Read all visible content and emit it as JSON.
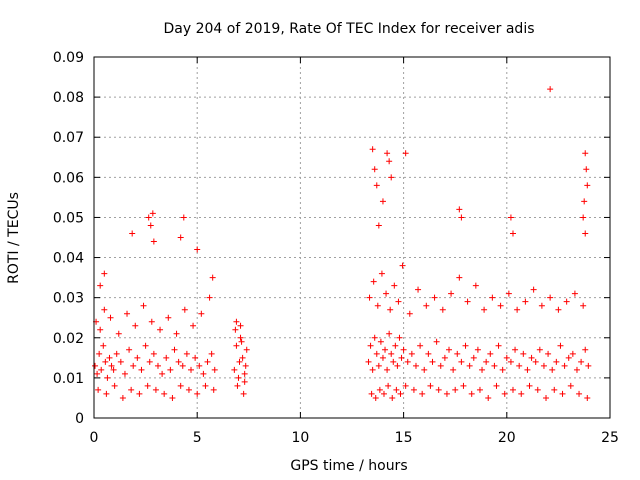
{
  "chart_data": {
    "type": "scatter",
    "title": "Day 204 of 2019, Rate Of TEC Index for receiver adis",
    "xlabel": "GPS time / hours",
    "ylabel": "ROTI / TECUs",
    "xlim": [
      0,
      25
    ],
    "ylim": [
      0,
      0.09
    ],
    "xticks": [
      0,
      5,
      10,
      15,
      20,
      25
    ],
    "xtick_labels": [
      "0",
      "5",
      "10",
      "15",
      "20",
      "25"
    ],
    "yticks": [
      0,
      0.01,
      0.02,
      0.03,
      0.04,
      0.05,
      0.06,
      0.07,
      0.08,
      0.09
    ],
    "ytick_labels": [
      "0",
      "0.01",
      "0.02",
      "0.03",
      "0.04",
      "0.05",
      "0.06",
      "0.07",
      "0.08",
      "0.09"
    ],
    "grid": true,
    "marker": "+",
    "color": "#ff0000",
    "series": [
      {
        "name": "ROTI",
        "x": [
          0.05,
          0.15,
          0.25,
          0.35,
          0.45,
          0.55,
          0.65,
          0.75,
          0.85,
          0.95,
          1.1,
          1.3,
          1.5,
          1.7,
          1.9,
          2.1,
          2.3,
          2.5,
          2.7,
          2.9,
          3.1,
          3.3,
          3.5,
          3.7,
          3.9,
          4.1,
          4.3,
          4.5,
          4.7,
          4.9,
          5.1,
          5.3,
          5.5,
          5.7,
          5.85,
          0.1,
          0.3,
          0.5,
          0.8,
          1.2,
          1.6,
          2.0,
          2.4,
          2.8,
          3.2,
          3.6,
          4.0,
          4.4,
          4.8,
          5.2,
          5.6,
          0.2,
          0.6,
          1.0,
          1.4,
          1.8,
          2.2,
          2.6,
          3.0,
          3.4,
          3.8,
          4.2,
          4.6,
          5.0,
          5.4,
          5.8,
          2.65,
          2.75,
          2.85,
          2.9,
          1.85,
          4.2,
          4.35,
          5.0,
          5.75,
          0.3,
          0.5,
          6.8,
          6.9,
          7.0,
          7.1,
          7.2,
          7.3,
          7.4,
          6.85,
          6.95,
          7.05,
          7.15,
          7.25,
          7.35,
          6.9,
          7.1,
          7.3,
          13.3,
          13.4,
          13.5,
          13.6,
          13.7,
          13.8,
          13.9,
          14.0,
          14.1,
          14.2,
          14.3,
          14.4,
          14.5,
          14.6,
          14.7,
          14.8,
          14.9,
          15.0,
          15.2,
          15.4,
          15.6,
          15.8,
          16.0,
          16.2,
          16.4,
          16.6,
          16.8,
          17.0,
          17.2,
          17.4,
          17.6,
          17.8,
          18.0,
          18.2,
          18.4,
          18.6,
          18.8,
          19.0,
          19.2,
          19.4,
          19.6,
          19.8,
          20.0,
          20.2,
          20.4,
          20.6,
          20.8,
          21.0,
          21.2,
          21.4,
          21.6,
          21.8,
          22.0,
          22.2,
          22.4,
          22.6,
          22.8,
          23.0,
          23.2,
          23.4,
          23.6,
          23.8,
          23.95,
          13.35,
          13.55,
          13.75,
          13.95,
          14.15,
          14.35,
          14.55,
          14.75,
          14.95,
          15.3,
          15.7,
          16.1,
          16.5,
          16.9,
          17.3,
          17.7,
          18.1,
          18.5,
          18.9,
          19.3,
          19.7,
          20.1,
          20.5,
          20.9,
          21.3,
          21.7,
          22.1,
          22.5,
          22.9,
          23.3,
          23.7,
          13.45,
          13.65,
          13.85,
          14.05,
          14.25,
          14.45,
          14.65,
          14.85,
          15.1,
          15.5,
          15.9,
          16.3,
          16.7,
          17.1,
          17.5,
          17.9,
          18.3,
          18.7,
          19.1,
          19.5,
          19.9,
          20.3,
          20.7,
          21.1,
          21.5,
          21.9,
          22.3,
          22.7,
          23.1,
          23.5,
          23.9,
          13.5,
          13.6,
          13.7,
          14.2,
          14.3,
          14.4,
          15.1,
          14.0,
          13.8,
          17.7,
          17.8,
          20.2,
          20.3,
          22.1,
          23.8,
          23.85,
          23.9,
          23.75,
          23.7,
          23.8
        ],
        "y": [
          0.013,
          0.011,
          0.016,
          0.012,
          0.018,
          0.014,
          0.01,
          0.015,
          0.013,
          0.012,
          0.016,
          0.014,
          0.011,
          0.017,
          0.013,
          0.015,
          0.012,
          0.018,
          0.014,
          0.016,
          0.013,
          0.011,
          0.015,
          0.012,
          0.017,
          0.014,
          0.013,
          0.016,
          0.012,
          0.015,
          0.013,
          0.011,
          0.014,
          0.016,
          0.012,
          0.024,
          0.022,
          0.027,
          0.025,
          0.021,
          0.026,
          0.023,
          0.028,
          0.024,
          0.022,
          0.025,
          0.021,
          0.027,
          0.023,
          0.026,
          0.03,
          0.007,
          0.006,
          0.008,
          0.005,
          0.007,
          0.006,
          0.008,
          0.007,
          0.006,
          0.005,
          0.008,
          0.007,
          0.006,
          0.008,
          0.007,
          0.05,
          0.048,
          0.051,
          0.044,
          0.046,
          0.045,
          0.05,
          0.042,
          0.035,
          0.033,
          0.036,
          0.012,
          0.018,
          0.01,
          0.02,
          0.015,
          0.011,
          0.017,
          0.022,
          0.008,
          0.014,
          0.019,
          0.006,
          0.013,
          0.024,
          0.023,
          0.009,
          0.014,
          0.018,
          0.012,
          0.02,
          0.016,
          0.013,
          0.019,
          0.015,
          0.017,
          0.012,
          0.021,
          0.016,
          0.014,
          0.018,
          0.013,
          0.02,
          0.015,
          0.017,
          0.014,
          0.016,
          0.013,
          0.018,
          0.012,
          0.016,
          0.014,
          0.019,
          0.013,
          0.015,
          0.017,
          0.012,
          0.016,
          0.014,
          0.018,
          0.013,
          0.015,
          0.017,
          0.012,
          0.014,
          0.016,
          0.013,
          0.018,
          0.012,
          0.015,
          0.014,
          0.017,
          0.013,
          0.016,
          0.012,
          0.015,
          0.014,
          0.017,
          0.013,
          0.016,
          0.012,
          0.014,
          0.018,
          0.013,
          0.015,
          0.016,
          0.012,
          0.014,
          0.017,
          0.013,
          0.03,
          0.034,
          0.028,
          0.036,
          0.031,
          0.027,
          0.033,
          0.029,
          0.038,
          0.026,
          0.032,
          0.028,
          0.03,
          0.027,
          0.031,
          0.035,
          0.029,
          0.033,
          0.027,
          0.03,
          0.028,
          0.031,
          0.027,
          0.029,
          0.032,
          0.028,
          0.03,
          0.027,
          0.029,
          0.031,
          0.028,
          0.006,
          0.005,
          0.007,
          0.006,
          0.008,
          0.005,
          0.007,
          0.006,
          0.008,
          0.007,
          0.006,
          0.008,
          0.007,
          0.006,
          0.007,
          0.008,
          0.006,
          0.007,
          0.005,
          0.008,
          0.006,
          0.007,
          0.006,
          0.008,
          0.007,
          0.005,
          0.007,
          0.006,
          0.008,
          0.006,
          0.005,
          0.067,
          0.062,
          0.058,
          0.066,
          0.064,
          0.06,
          0.066,
          0.054,
          0.048,
          0.052,
          0.05,
          0.05,
          0.046,
          0.082,
          0.066,
          0.062,
          0.058,
          0.054,
          0.05,
          0.046
        ]
      }
    ]
  }
}
